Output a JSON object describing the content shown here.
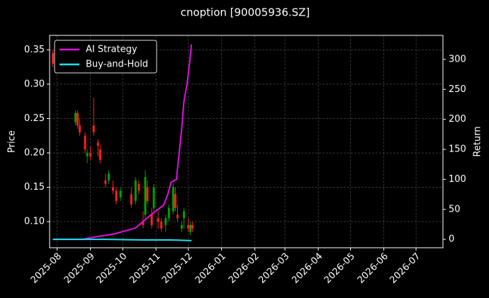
{
  "chart_data": {
    "type": "candlestick",
    "title": "cnoption [90005936.SZ]",
    "ylabel": "Price",
    "y2label": "Return",
    "up_color": "#00a000",
    "down_color": "#ff2020",
    "candles": {
      "x": [
        "2025-07-28",
        "2025-08-18",
        "2025-08-20",
        "2025-08-22",
        "2025-08-27",
        "2025-08-29",
        "2025-09-01",
        "2025-09-04",
        "2025-09-08",
        "2025-09-10",
        "2025-09-15",
        "2025-09-18",
        "2025-09-22",
        "2025-09-25",
        "2025-09-29",
        "2025-10-09",
        "2025-10-13",
        "2025-10-16",
        "2025-10-20",
        "2025-10-22",
        "2025-10-24",
        "2025-10-28",
        "2025-10-30",
        "2025-11-03",
        "2025-11-06",
        "2025-11-10",
        "2025-11-13",
        "2025-11-17",
        "2025-11-19",
        "2025-11-21",
        "2025-11-25",
        "2025-11-27",
        "2025-12-01",
        "2025-12-03",
        "2025-12-05"
      ],
      "open": [
        0.345,
        0.245,
        0.258,
        0.24,
        0.225,
        0.195,
        0.2,
        0.24,
        0.215,
        0.205,
        0.16,
        0.16,
        0.15,
        0.145,
        0.135,
        0.14,
        0.13,
        0.155,
        0.1,
        0.11,
        0.15,
        0.11,
        0.12,
        0.105,
        0.1,
        0.095,
        0.105,
        0.115,
        0.14,
        0.11,
        0.09,
        0.105,
        0.095,
        0.085,
        0.095
      ],
      "high": [
        0.35,
        0.262,
        0.262,
        0.25,
        0.23,
        0.205,
        0.21,
        0.28,
        0.22,
        0.212,
        0.17,
        0.175,
        0.16,
        0.15,
        0.15,
        0.15,
        0.165,
        0.16,
        0.115,
        0.175,
        0.16,
        0.12,
        0.155,
        0.115,
        0.105,
        0.11,
        0.125,
        0.155,
        0.15,
        0.125,
        0.1,
        0.12,
        0.105,
        0.1,
        0.1
      ],
      "low": [
        0.325,
        0.24,
        0.235,
        0.225,
        0.2,
        0.185,
        0.19,
        0.225,
        0.195,
        0.185,
        0.15,
        0.155,
        0.14,
        0.125,
        0.13,
        0.12,
        0.125,
        0.14,
        0.09,
        0.105,
        0.125,
        0.09,
        0.115,
        0.09,
        0.085,
        0.085,
        0.1,
        0.11,
        0.115,
        0.1,
        0.085,
        0.09,
        0.085,
        0.08,
        0.085
      ],
      "close": [
        0.33,
        0.258,
        0.24,
        0.23,
        0.205,
        0.2,
        0.195,
        0.23,
        0.21,
        0.19,
        0.155,
        0.17,
        0.145,
        0.13,
        0.145,
        0.125,
        0.16,
        0.145,
        0.095,
        0.165,
        0.13,
        0.095,
        0.15,
        0.1,
        0.09,
        0.105,
        0.12,
        0.15,
        0.12,
        0.105,
        0.095,
        0.115,
        0.09,
        0.095,
        0.09
      ]
    },
    "series": [
      {
        "name": "AI Strategy",
        "color": "#e010e0",
        "axis": "y2",
        "x": [
          "2025-07-28",
          "2025-08-25",
          "2025-09-02",
          "2025-09-23",
          "2025-10-13",
          "2025-10-26",
          "2025-11-08",
          "2025-11-12",
          "2025-11-15",
          "2025-11-20",
          "2025-11-25",
          "2025-11-27",
          "2025-11-30",
          "2025-12-02",
          "2025-12-04"
        ],
        "values": [
          0,
          0,
          3,
          9,
          19,
          39,
          57,
          75,
          95,
          100,
          186,
          230,
          260,
          290,
          325
        ]
      },
      {
        "name": "Buy-and-Hold",
        "color": "#20e0f0",
        "axis": "y2",
        "x": [
          "2025-07-28",
          "2025-09-15",
          "2025-10-20",
          "2025-11-15",
          "2025-12-04"
        ],
        "values": [
          0,
          0,
          -1,
          -1,
          -2
        ]
      }
    ],
    "xlim": [
      "2025-07-25",
      "2026-07-26"
    ],
    "xticks": [
      {
        "value": "2025-08-01",
        "label": "2025-08"
      },
      {
        "value": "2025-09-01",
        "label": "2025-09"
      },
      {
        "value": "2025-10-01",
        "label": "2025-10"
      },
      {
        "value": "2025-11-01",
        "label": "2025-11"
      },
      {
        "value": "2025-12-01",
        "label": "2025-12"
      },
      {
        "value": "2026-01-01",
        "label": "2026-01"
      },
      {
        "value": "2026-02-01",
        "label": "2026-02"
      },
      {
        "value": "2026-03-01",
        "label": "2026-03"
      },
      {
        "value": "2026-04-01",
        "label": "2026-04"
      },
      {
        "value": "2026-05-01",
        "label": "2026-05"
      },
      {
        "value": "2026-06-01",
        "label": "2026-06"
      },
      {
        "value": "2026-07-01",
        "label": "2026-07"
      }
    ],
    "ylim": [
      0.062,
      0.371
    ],
    "yticks": [
      {
        "value": 0.1,
        "label": "0.10"
      },
      {
        "value": 0.15,
        "label": "0.15"
      },
      {
        "value": 0.2,
        "label": "0.20"
      },
      {
        "value": 0.25,
        "label": "0.25"
      },
      {
        "value": 0.3,
        "label": "0.30"
      },
      {
        "value": 0.35,
        "label": "0.35"
      }
    ],
    "y2lim": [
      -14,
      340
    ],
    "y2ticks": [
      0,
      50,
      100,
      150,
      200,
      250,
      300
    ],
    "grid": true,
    "legend": "upper left"
  }
}
